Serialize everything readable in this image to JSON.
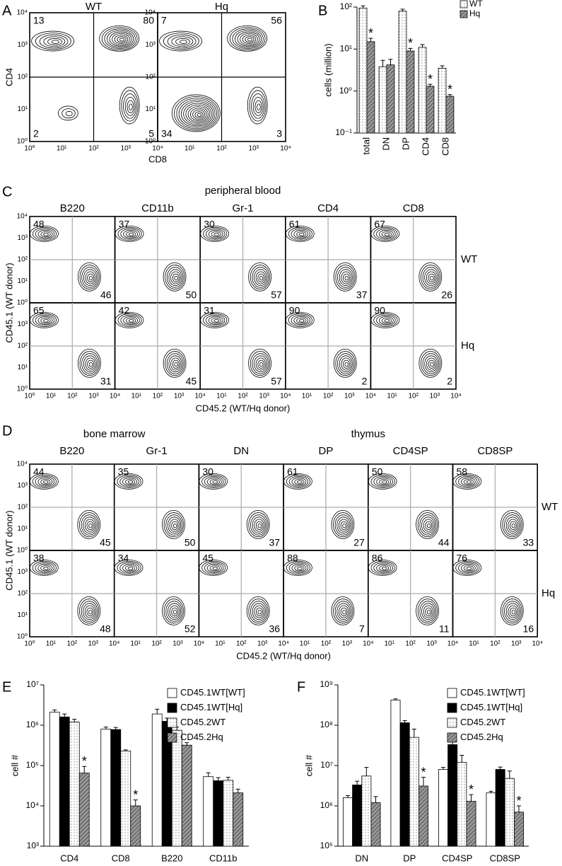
{
  "panel_letters": [
    "A",
    "B",
    "C",
    "D",
    "E",
    "F"
  ],
  "flow_ticks": [
    "10⁰",
    "10¹",
    "10²",
    "10³",
    "10⁴"
  ],
  "panel_a": {
    "columns": [
      "WT",
      "Hq"
    ],
    "y_label": "CD4",
    "x_label": "CD8",
    "quadrants": [
      {
        "upper_left": 13,
        "upper_right": 80,
        "lower_left": 2,
        "lower_right": 5
      },
      {
        "upper_left": 7,
        "upper_right": 56,
        "lower_left": 34,
        "lower_right": 3
      }
    ]
  },
  "panel_c": {
    "title": "peripheral blood",
    "columns": [
      "B220",
      "CD11b",
      "Gr-1",
      "CD4",
      "CD8"
    ],
    "rows": [
      "WT",
      "Hq"
    ],
    "y_label": "CD45.1 (WT donor)",
    "x_label": "CD45.2 (WT/Hq donor)",
    "quadrants": [
      [
        [
          48,
          46
        ],
        [
          37,
          50
        ],
        [
          30,
          57
        ],
        [
          61,
          37
        ],
        [
          67,
          26
        ]
      ],
      [
        [
          65,
          31
        ],
        [
          42,
          45
        ],
        [
          31,
          57
        ],
        [
          90,
          2
        ],
        [
          90,
          2
        ]
      ]
    ]
  },
  "panel_d": {
    "groups": [
      "bone marrow",
      "thymus"
    ],
    "columns": [
      "B220",
      "Gr-1",
      "DN",
      "DP",
      "CD4SP",
      "CD8SP"
    ],
    "rows": [
      "WT",
      "Hq"
    ],
    "y_label": "CD45.1 (WT donor)",
    "x_label": "CD45.2 (WT/Hq donor)",
    "quadrants": [
      [
        [
          44,
          45
        ],
        [
          35,
          50
        ],
        [
          30,
          37
        ],
        [
          61,
          27
        ],
        [
          50,
          44
        ],
        [
          58,
          33
        ]
      ],
      [
        [
          38,
          48
        ],
        [
          34,
          52
        ],
        [
          45,
          36
        ],
        [
          88,
          7
        ],
        [
          86,
          11
        ],
        [
          76,
          16
        ]
      ]
    ]
  },
  "chart_data": [
    {
      "type": "bar",
      "y_label": "cells (million)",
      "log_scale": true,
      "legend": "right",
      "xtick_rotation": 90,
      "categories": [
        "total",
        "DN",
        "DP",
        "CD4",
        "CD8"
      ],
      "series": [
        {
          "name": "WT",
          "color": "#ffffff",
          "pattern": "dots",
          "values": [
            95,
            3.8,
            80,
            11,
            3.5
          ],
          "errors": [
            12,
            1.6,
            9,
            1.8,
            0.5
          ]
        },
        {
          "name": "Hq",
          "color": "#999999",
          "pattern": "hatch",
          "values": [
            15,
            4.2,
            9,
            1.3,
            0.75
          ],
          "errors": [
            3,
            1.5,
            1.4,
            0.15,
            0.07
          ],
          "annotations": [
            "*",
            null,
            "*",
            "*",
            "*"
          ]
        }
      ],
      "ylim": [
        0.1,
        100
      ],
      "yticks": [
        {
          "value": 0.1,
          "label": "10⁻¹"
        },
        {
          "value": 1,
          "label": "10⁰"
        },
        {
          "value": 10,
          "label": "10¹"
        },
        {
          "value": 100,
          "label": "10²"
        }
      ]
    },
    {
      "type": "bar",
      "y_label": "cell #",
      "log_scale": true,
      "legend": "upper-right",
      "xtick_rotation": 0,
      "categories": [
        "CD4",
        "CD8",
        "B220",
        "CD11b"
      ],
      "series": [
        {
          "name": "CD45.1WT[WT]",
          "color": "#ffffff",
          "pattern": "none",
          "values": [
            2100000,
            800000,
            1900000,
            53000
          ],
          "errors": [
            300000,
            100000,
            600000,
            13000
          ]
        },
        {
          "name": "CD45.1WT[Hq]",
          "color": "#000000",
          "pattern": "none",
          "values": [
            1600000,
            780000,
            1250000,
            42000
          ],
          "errors": [
            300000,
            100000,
            250000,
            8000
          ]
        },
        {
          "name": "CD45.2WT",
          "color": "#ffffff",
          "pattern": "dots",
          "values": [
            1200000,
            230000,
            750000,
            43000
          ],
          "errors": [
            200000,
            15000,
            150000,
            8000
          ]
        },
        {
          "name": "CD45.2Hq",
          "color": "#999999",
          "pattern": "hatch",
          "values": [
            65000,
            10000,
            320000,
            21000
          ],
          "errors": [
            30000,
            4000,
            50000,
            5000
          ],
          "annotations": [
            "*",
            "*",
            null,
            null
          ]
        }
      ],
      "ylim": [
        1000,
        10000000
      ],
      "yticks": [
        {
          "value": 1000,
          "label": "10³"
        },
        {
          "value": 10000,
          "label": "10⁴"
        },
        {
          "value": 100000,
          "label": "10⁵"
        },
        {
          "value": 1000000,
          "label": "10⁶"
        },
        {
          "value": 10000000,
          "label": "10⁷"
        }
      ]
    },
    {
      "type": "bar",
      "y_label": "cell #",
      "log_scale": true,
      "legend": "upper-right",
      "xtick_rotation": 0,
      "categories": [
        "DN",
        "DP",
        "CD4SP",
        "CD8SP"
      ],
      "series": [
        {
          "name": "CD45.1WT[WT]",
          "color": "#ffffff",
          "pattern": "none",
          "values": [
            1600000,
            420000000,
            8000000,
            2100000
          ],
          "errors": [
            200000,
            30000000,
            1000000,
            200000
          ]
        },
        {
          "name": "CD45.1WT[Hq]",
          "color": "#000000",
          "pattern": "none",
          "values": [
            3300000,
            115000000,
            33000000,
            8000000
          ],
          "errors": [
            800000,
            15000000,
            12000000,
            1200000
          ]
        },
        {
          "name": "CD45.2WT",
          "color": "#ffffff",
          "pattern": "dots",
          "values": [
            5500000,
            50000000,
            12000000,
            4800000
          ],
          "errors": [
            3500000,
            30000000,
            6000000,
            2500000
          ]
        },
        {
          "name": "CD45.2Hq",
          "color": "#999999",
          "pattern": "hatch",
          "values": [
            1200000,
            3100000,
            1300000,
            700000
          ],
          "errors": [
            500000,
            2000000,
            600000,
            300000
          ],
          "annotations": [
            null,
            "*",
            "*",
            "*"
          ]
        }
      ],
      "ylim": [
        100000,
        1000000000
      ],
      "yticks": [
        {
          "value": 100000,
          "label": "10⁵"
        },
        {
          "value": 1000000,
          "label": "10⁶"
        },
        {
          "value": 10000000,
          "label": "10⁷"
        },
        {
          "value": 100000000,
          "label": "10⁸"
        },
        {
          "value": 1000000000,
          "label": "10⁹"
        }
      ]
    }
  ]
}
